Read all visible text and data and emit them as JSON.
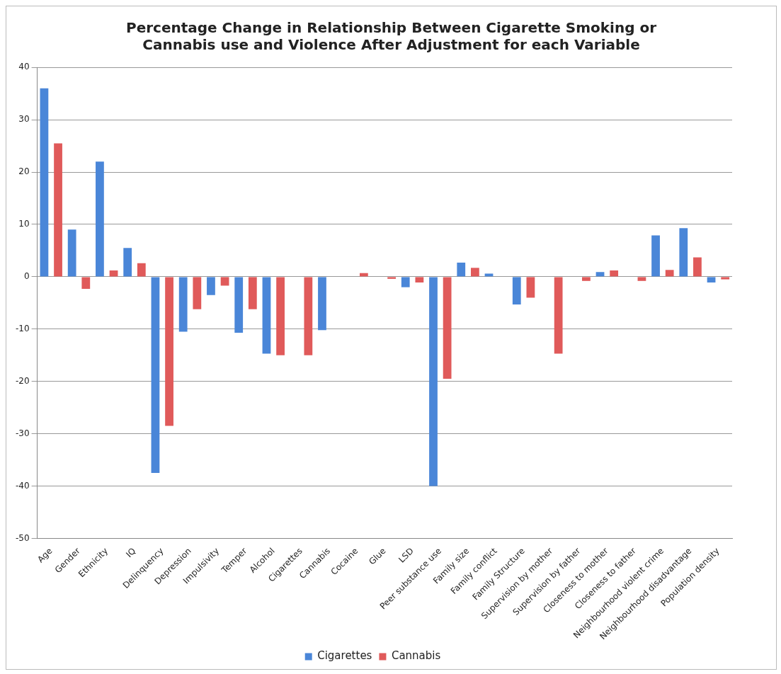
{
  "chart_data": {
    "type": "bar",
    "title": "Percentage Change in Relationship Between Cigarette Smoking or Cannabis use and Violence After Adjustment for each Variable",
    "categories": [
      "Age",
      "Gender",
      "Ethnicity",
      "IQ",
      "Delinquency",
      "Depression",
      "Impulsivity",
      "Temper",
      "Alcohol",
      "Cigarettes",
      "Cannabis",
      "Cocaine",
      "Glue",
      "LSD",
      "Peer substance use",
      "Family size",
      "Family conflict",
      "Family Structure",
      "Supervision by mother",
      "Supervision by father",
      "Closeness to mother",
      "Closeness to father",
      "Neighbourhood violent crime",
      "Neighbourhood disadvantage",
      "Population density"
    ],
    "series": [
      {
        "name": "Cigarettes",
        "color": "#4a86d8",
        "values": [
          36,
          9,
          22,
          5.5,
          -37.5,
          -10.5,
          -3.5,
          -10.7,
          -14.7,
          null,
          -10.2,
          null,
          0,
          -2,
          -40,
          2.7,
          0.6,
          -5.3,
          null,
          null,
          0.9,
          null,
          7.9,
          9.3,
          -1.1
        ]
      },
      {
        "name": "Cannabis",
        "color": "#e05a5a",
        "values": [
          25.5,
          -2.3,
          1.2,
          2.6,
          -28.5,
          -6.2,
          -1.7,
          -6.2,
          -15,
          -15,
          null,
          0.7,
          -0.4,
          -1.1,
          -19.5,
          1.7,
          0,
          -4,
          -14.7,
          -0.8,
          1.2,
          -0.8,
          1.3,
          3.7,
          -0.5
        ]
      }
    ],
    "ylim": [
      -50,
      40
    ],
    "yticks": [
      -50,
      -40,
      -30,
      -20,
      -10,
      0,
      10,
      20,
      30,
      40
    ],
    "grid": "y",
    "legend": "bottom"
  }
}
